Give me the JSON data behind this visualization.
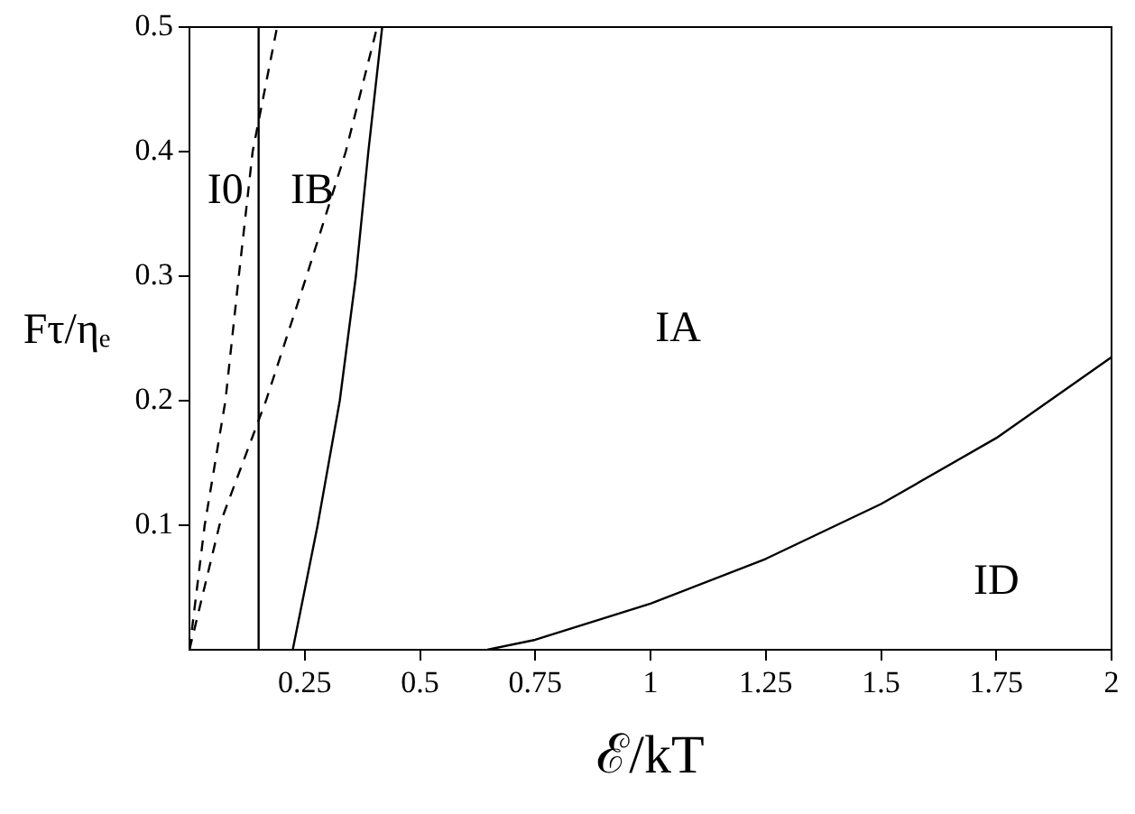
{
  "chart_data": {
    "type": "line",
    "xlabel": "ℰ/kT",
    "ylabel": "Fτ/ηₑ",
    "xlim": [
      0,
      2
    ],
    "ylim": [
      0,
      0.5
    ],
    "xticks": [
      0.25,
      0.5,
      0.75,
      1,
      1.25,
      1.5,
      1.75,
      2
    ],
    "yticks": [
      0.1,
      0.2,
      0.3,
      0.4,
      0.5
    ],
    "grid": false,
    "legend": false,
    "marker": "none",
    "series": [
      {
        "color": "#000000",
        "line_style": "solid",
        "x": [
          0.15,
          0.15
        ],
        "values": [
          0,
          0.5
        ]
      },
      {
        "color": "#000000",
        "line_style": "solid",
        "x": [
          0.224,
          0.278,
          0.326,
          0.361,
          0.388,
          0.418
        ],
        "values": [
          0,
          0.1,
          0.2,
          0.3,
          0.4,
          0.5
        ]
      },
      {
        "color": "#000000",
        "line_style": "dashed",
        "x": [
          0,
          0.033,
          0.078,
          0.107,
          0.137,
          0.19
        ],
        "values": [
          0,
          0.1,
          0.2,
          0.3,
          0.4,
          0.5
        ]
      },
      {
        "color": "#000000",
        "line_style": "dashed",
        "x": [
          0,
          0.065,
          0.166,
          0.254,
          0.339,
          0.407
        ],
        "values": [
          0,
          0.1,
          0.2,
          0.3,
          0.4,
          0.5
        ]
      },
      {
        "color": "#000000",
        "line_style": "solid",
        "x": [
          0.646,
          0.75,
          1,
          1.25,
          1.5,
          1.75,
          2
        ],
        "values": [
          0,
          0.008,
          0.037,
          0.073,
          0.117,
          0.17,
          0.235
        ]
      }
    ],
    "annotations": [
      "I0",
      "IB",
      "IA",
      "ID"
    ]
  }
}
